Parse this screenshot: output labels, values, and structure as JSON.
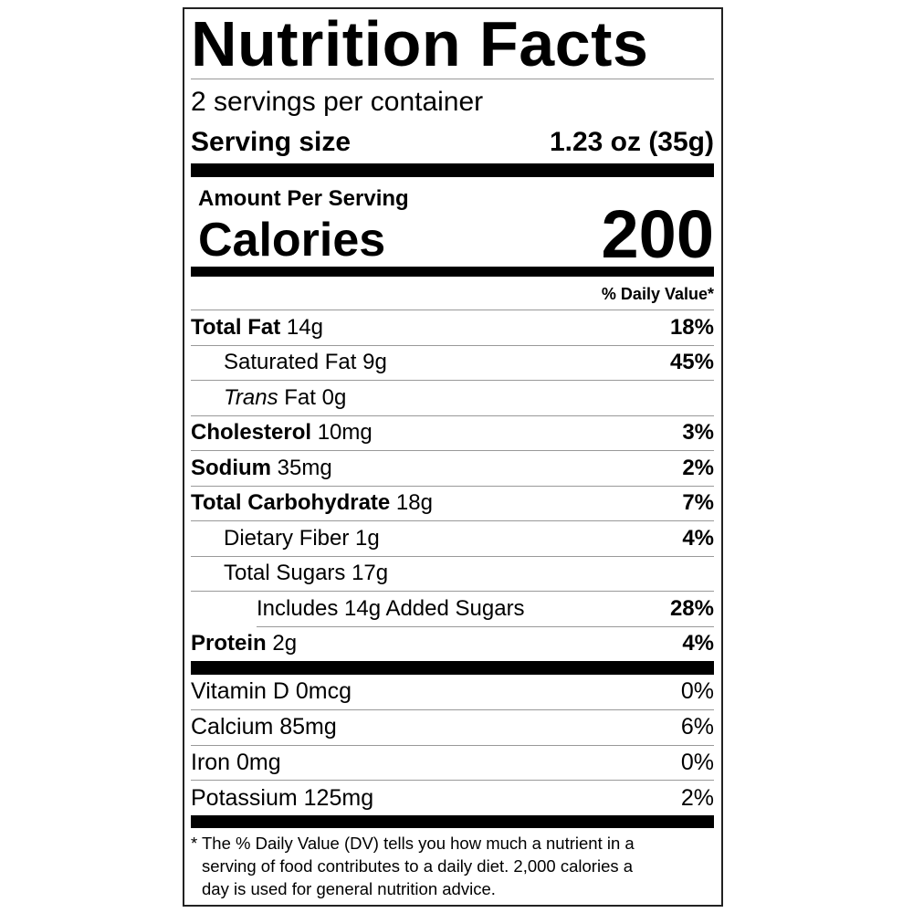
{
  "title": "Nutrition Facts",
  "servings_per_container": "2 servings per container",
  "serving_size": {
    "label": "Serving size",
    "value": "1.23 oz (35g)"
  },
  "amount_per_serving": "Amount Per Serving",
  "calories": {
    "label": "Calories",
    "value": "200"
  },
  "daily_value_header": "% Daily Value*",
  "nutrients": [
    {
      "name": "Total Fat",
      "amount": "14g",
      "dv": "18%"
    },
    {
      "name": "Saturated Fat",
      "amount": "9g",
      "dv": "45%"
    },
    {
      "name_italic": "Trans",
      "name": "Fat",
      "amount": "0g",
      "dv": ""
    },
    {
      "name": "Cholesterol",
      "amount": "10mg",
      "dv": "3%"
    },
    {
      "name": "Sodium",
      "amount": "35mg",
      "dv": "2%"
    },
    {
      "name": "Total Carbohydrate",
      "amount": "18g",
      "dv": "7%"
    },
    {
      "name": "Dietary Fiber",
      "amount": "1g",
      "dv": "4%"
    },
    {
      "name": "Total Sugars",
      "amount": "17g",
      "dv": ""
    },
    {
      "name": "Includes 14g Added Sugars",
      "amount": "",
      "dv": "28%"
    },
    {
      "name": "Protein",
      "amount": "2g",
      "dv": "4%"
    }
  ],
  "vitamins": [
    {
      "text": "Vitamin D 0mcg",
      "dv": "0%"
    },
    {
      "text": "Calcium 85mg",
      "dv": "6%"
    },
    {
      "text": "Iron 0mg",
      "dv": "0%"
    },
    {
      "text": "Potassium 125mg",
      "dv": "2%"
    }
  ],
  "footnote": {
    "asterisk": "*",
    "lines": [
      "The % Daily Value (DV) tells you how much a nutrient in a",
      "serving of food contributes to a daily diet. 2,000 calories a",
      "day is used for general nutrition advice."
    ]
  }
}
